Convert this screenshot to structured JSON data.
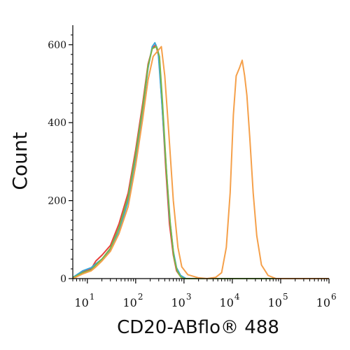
{
  "chart_data": {
    "type": "line",
    "xlabel": "CD20-ABflo® 488",
    "ylabel": "Count",
    "x_scale": "log",
    "xlim": [
      5,
      1000000
    ],
    "ylim": [
      0,
      650
    ],
    "xticks": [
      {
        "value": 10,
        "label": "1",
        "base": "10"
      },
      {
        "value": 100,
        "label": "2",
        "base": "10"
      },
      {
        "value": 1000,
        "label": "3",
        "base": "10"
      },
      {
        "value": 10000,
        "label": "4",
        "base": "10"
      },
      {
        "value": 100000,
        "label": "5",
        "base": "10"
      },
      {
        "value": 1000000,
        "label": "6",
        "base": "10"
      }
    ],
    "yticks": [
      {
        "value": 0,
        "label": "0"
      },
      {
        "value": 200,
        "label": "200"
      },
      {
        "value": 400,
        "label": "400"
      },
      {
        "value": 600,
        "label": "600"
      }
    ],
    "grid": false,
    "series": [
      {
        "color": "#e8413c",
        "points": [
          [
            5,
            2
          ],
          [
            8,
            18
          ],
          [
            12,
            25
          ],
          [
            15,
            45
          ],
          [
            20,
            60
          ],
          [
            30,
            85
          ],
          [
            45,
            140
          ],
          [
            70,
            220
          ],
          [
            100,
            330
          ],
          [
            140,
            450
          ],
          [
            180,
            550
          ],
          [
            220,
            590
          ],
          [
            260,
            600
          ],
          [
            300,
            570
          ],
          [
            350,
            450
          ],
          [
            420,
            280
          ],
          [
            500,
            140
          ],
          [
            600,
            60
          ],
          [
            700,
            20
          ],
          [
            850,
            5
          ],
          [
            1000,
            0
          ],
          [
            1000000,
            0
          ]
        ]
      },
      {
        "color": "#3aa6d8",
        "points": [
          [
            5,
            3
          ],
          [
            8,
            20
          ],
          [
            12,
            28
          ],
          [
            15,
            38
          ],
          [
            20,
            50
          ],
          [
            30,
            75
          ],
          [
            45,
            120
          ],
          [
            70,
            200
          ],
          [
            100,
            310
          ],
          [
            140,
            430
          ],
          [
            180,
            540
          ],
          [
            220,
            595
          ],
          [
            250,
            605
          ],
          [
            290,
            585
          ],
          [
            340,
            470
          ],
          [
            420,
            300
          ],
          [
            500,
            160
          ],
          [
            600,
            70
          ],
          [
            700,
            28
          ],
          [
            850,
            8
          ],
          [
            1100,
            0
          ],
          [
            1000000,
            0
          ]
        ]
      },
      {
        "color": "#7ab648",
        "points": [
          [
            5,
            2
          ],
          [
            8,
            15
          ],
          [
            12,
            22
          ],
          [
            15,
            35
          ],
          [
            20,
            50
          ],
          [
            30,
            78
          ],
          [
            45,
            130
          ],
          [
            70,
            210
          ],
          [
            100,
            320
          ],
          [
            140,
            440
          ],
          [
            180,
            545
          ],
          [
            220,
            590
          ],
          [
            270,
            595
          ],
          [
            310,
            570
          ],
          [
            360,
            450
          ],
          [
            430,
            280
          ],
          [
            520,
            140
          ],
          [
            620,
            55
          ],
          [
            720,
            20
          ],
          [
            850,
            5
          ],
          [
            1000,
            0
          ],
          [
            1000000,
            0
          ]
        ]
      },
      {
        "color": "#f5a04a",
        "points": [
          [
            5,
            0
          ],
          [
            8,
            12
          ],
          [
            12,
            20
          ],
          [
            15,
            30
          ],
          [
            20,
            45
          ],
          [
            30,
            70
          ],
          [
            45,
            115
          ],
          [
            70,
            185
          ],
          [
            100,
            290
          ],
          [
            140,
            410
          ],
          [
            180,
            510
          ],
          [
            230,
            570
          ],
          [
            290,
            585
          ],
          [
            340,
            595
          ],
          [
            400,
            520
          ],
          [
            480,
            380
          ],
          [
            600,
            200
          ],
          [
            750,
            80
          ],
          [
            900,
            30
          ],
          [
            1200,
            10
          ],
          [
            2000,
            2
          ],
          [
            3000,
            0
          ],
          [
            4500,
            3
          ],
          [
            6000,
            15
          ],
          [
            7500,
            80
          ],
          [
            9000,
            220
          ],
          [
            10500,
            420
          ],
          [
            12000,
            520
          ],
          [
            14000,
            540
          ],
          [
            16000,
            560
          ],
          [
            18000,
            520
          ],
          [
            20000,
            470
          ],
          [
            23000,
            360
          ],
          [
            27000,
            220
          ],
          [
            32000,
            110
          ],
          [
            40000,
            35
          ],
          [
            55000,
            8
          ],
          [
            80000,
            0
          ],
          [
            1000000,
            0
          ]
        ]
      }
    ]
  }
}
